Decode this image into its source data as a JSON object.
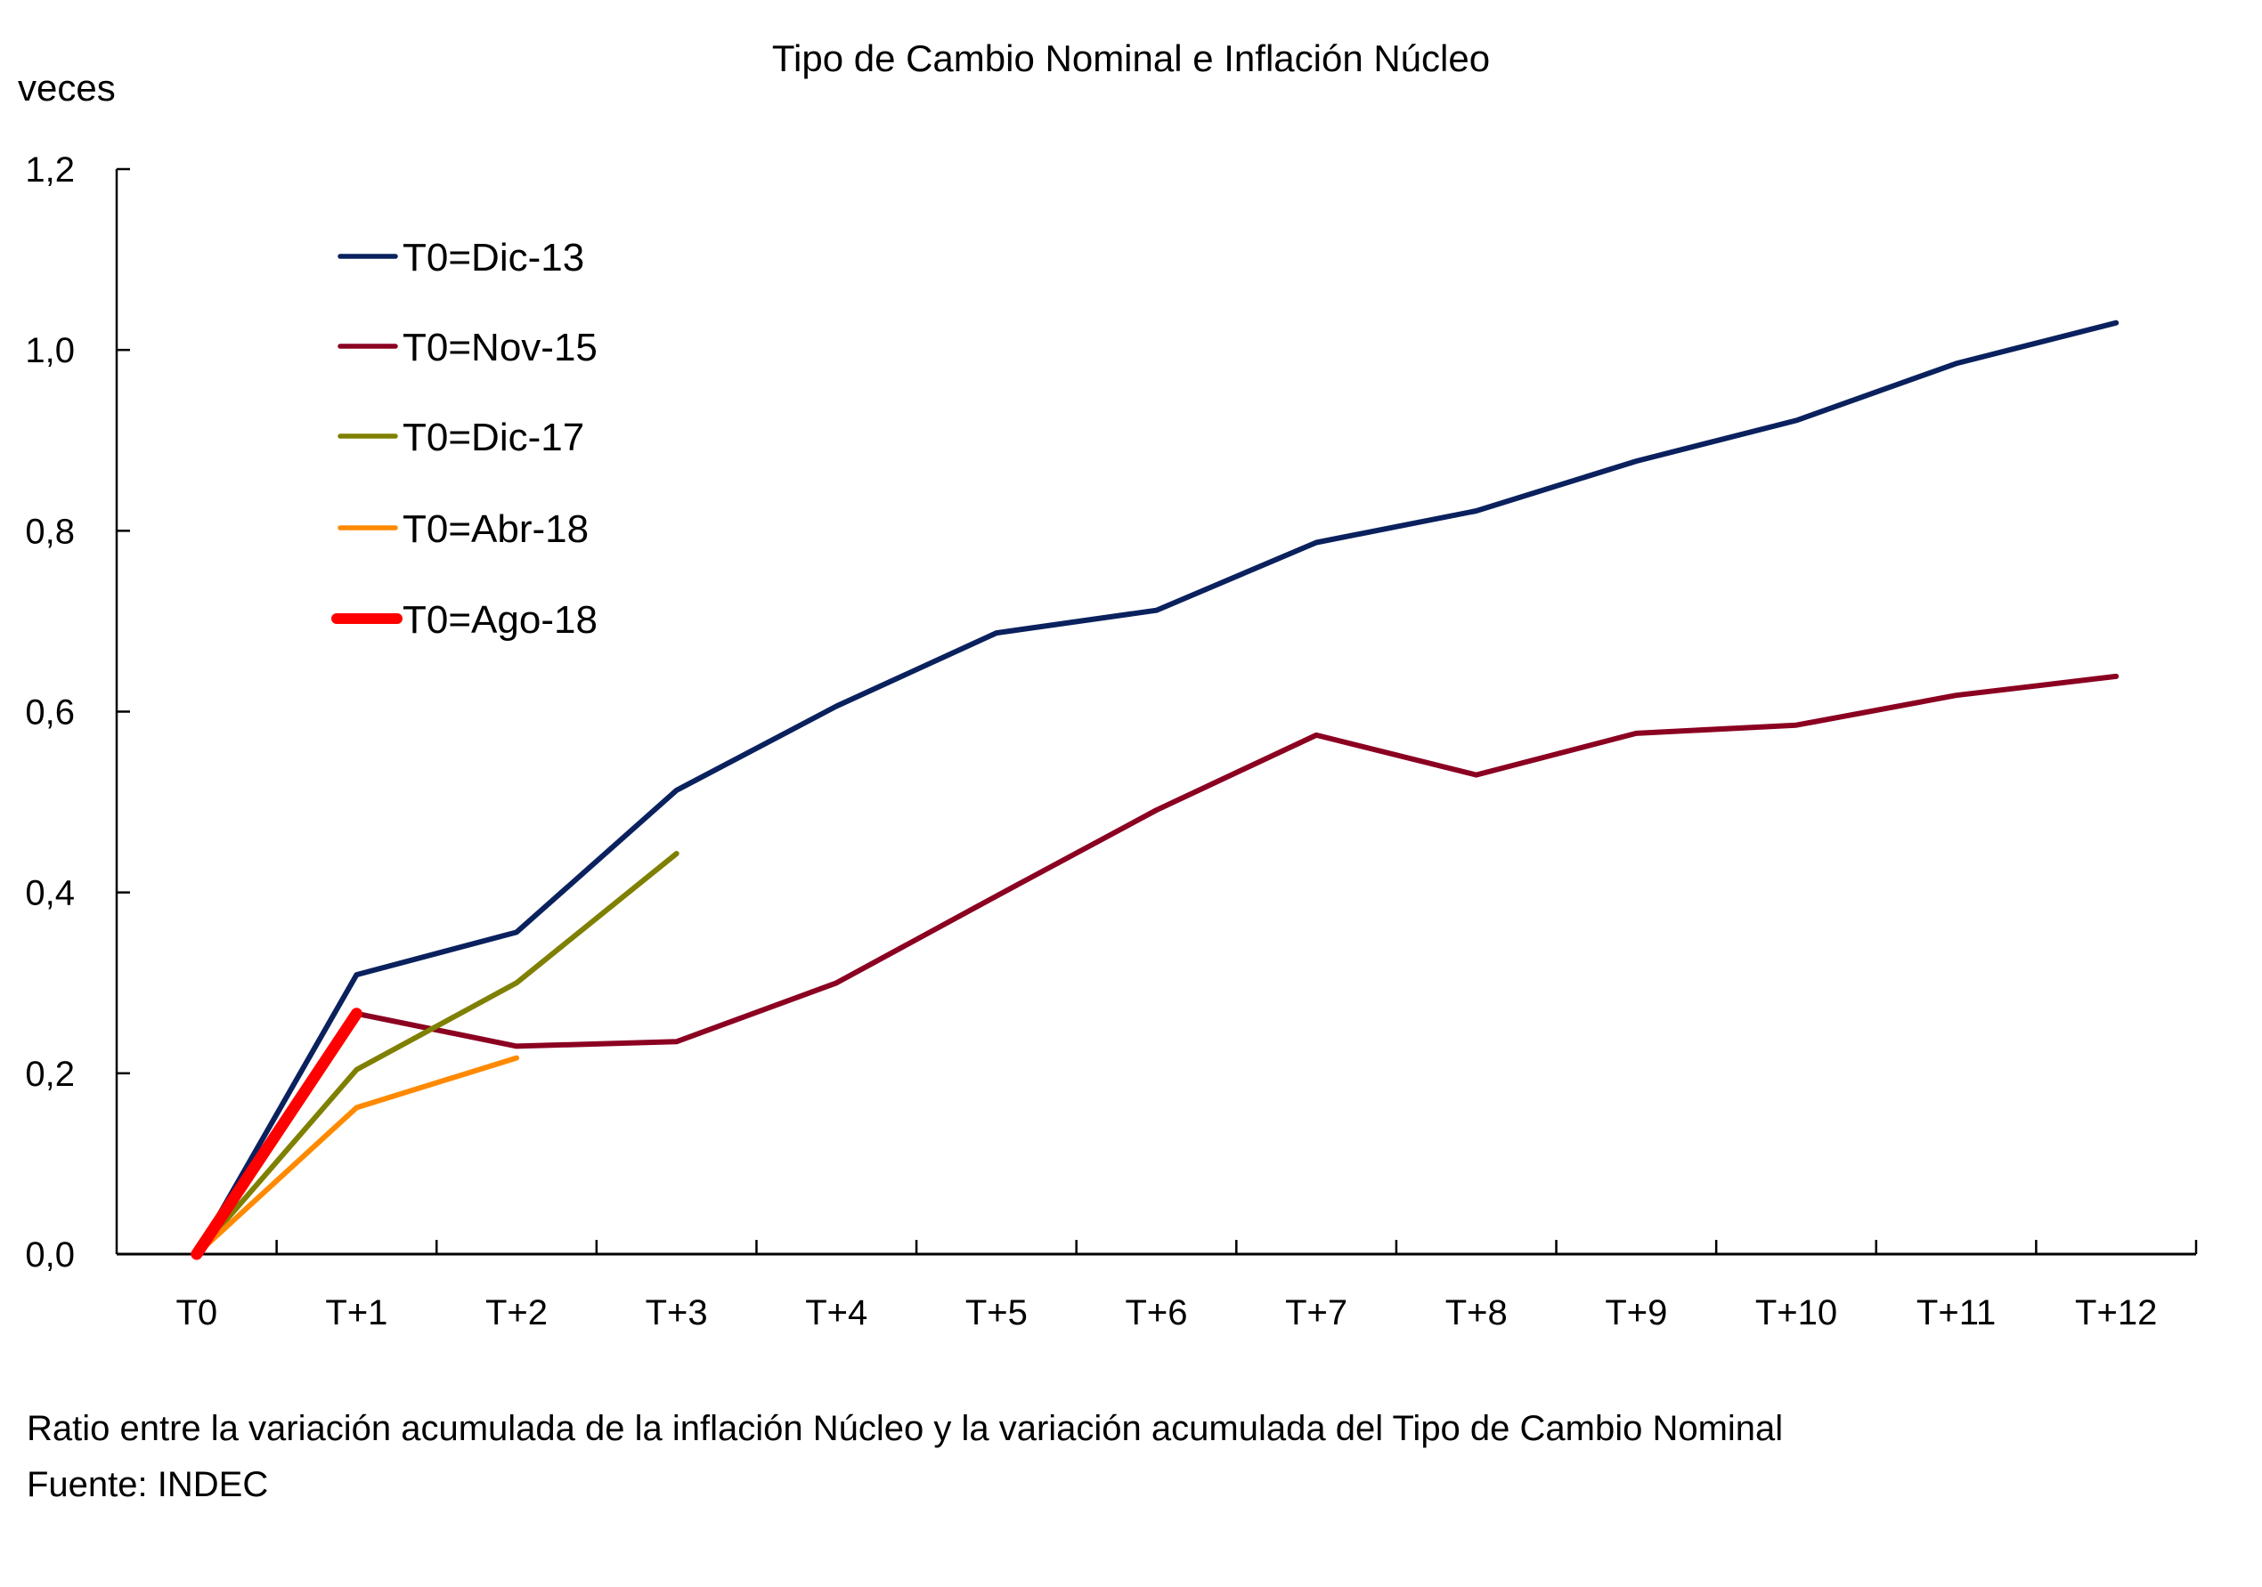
{
  "chart_data": {
    "type": "line",
    "title": "Tipo de Cambio Nominal e Inflación Núcleo",
    "ylabel": "veces",
    "xlabel": "",
    "ylim": [
      0,
      1.2
    ],
    "yticks": [
      0,
      0.2,
      0.4,
      0.6,
      0.8,
      1.0,
      1.2
    ],
    "ytick_labels": [
      "0,0",
      "0,2",
      "0,4",
      "0,6",
      "0,8",
      "1,0",
      "1,2"
    ],
    "categories": [
      "T0",
      "T+1",
      "T+2",
      "T+3",
      "T+4",
      "T+5",
      "T+6",
      "T+7",
      "T+8",
      "T+9",
      "T+10",
      "T+11",
      "T+12"
    ],
    "grid": false,
    "legend_position": "top-left",
    "series": [
      {
        "name": "T0=Dic-13",
        "color": "#0A215E",
        "emphasis": false,
        "values": [
          0.0,
          0.309,
          0.356,
          0.513,
          0.606,
          0.687,
          0.712,
          0.787,
          0.822,
          0.877,
          0.922,
          0.985,
          1.03
        ]
      },
      {
        "name": "T0=Nov-15",
        "color": "#8B0021",
        "emphasis": false,
        "values": [
          0.0,
          0.266,
          0.23,
          0.235,
          0.3,
          0.396,
          0.491,
          0.574,
          0.53,
          0.576,
          0.585,
          0.618,
          0.639
        ]
      },
      {
        "name": "T0=Dic-17",
        "color": "#7F8000",
        "emphasis": false,
        "values": [
          0.0,
          0.204,
          0.3,
          0.443
        ]
      },
      {
        "name": "T0=Abr-18",
        "color": "#FF8A00",
        "emphasis": false,
        "values": [
          0.0,
          0.162,
          0.217
        ]
      },
      {
        "name": "T0=Ago-18",
        "color": "#FF0000",
        "emphasis": true,
        "values": [
          0.0,
          0.266
        ]
      }
    ]
  },
  "footnotes": {
    "note": "Ratio entre la variación acumulada de la inflación Núcleo y la variación acumulada del Tipo de Cambio Nominal",
    "source": "Fuente: INDEC"
  }
}
